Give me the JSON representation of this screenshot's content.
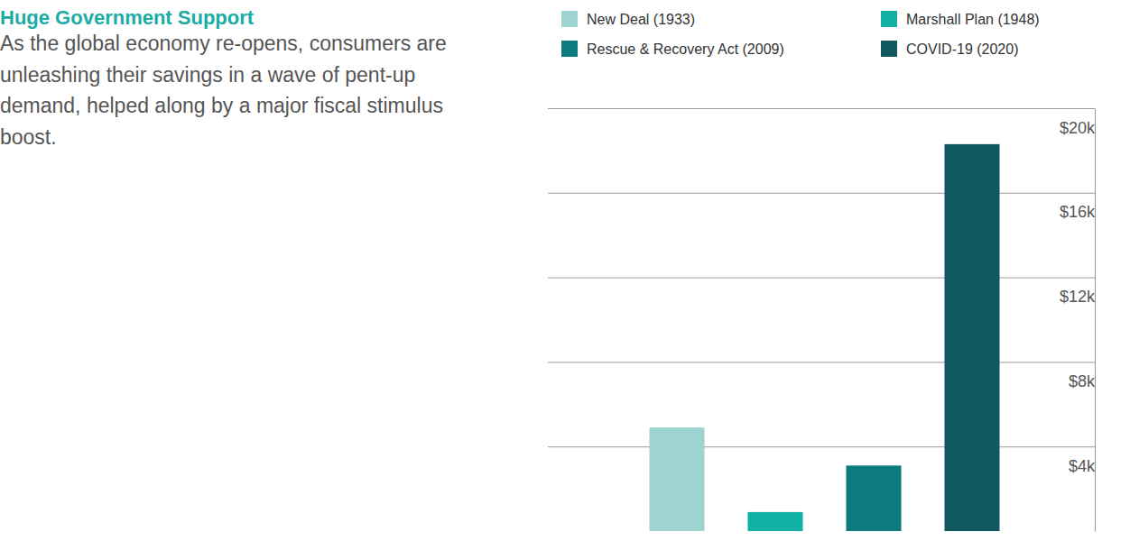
{
  "chart_data": {
    "type": "bar",
    "title": "Huge Government Support",
    "subtitle": "As the global economy re-opens, consumers are unleashing their savings in a wave of pent-up demand, helped along by a major fiscal stimulus boost.",
    "categories": [
      "New Deal (1933)",
      "Marshall Plan (1948)",
      "Rescue & Recovery Act (2009)",
      "COVID-19 (2020)"
    ],
    "values": [
      4900,
      900,
      3100,
      18300
    ],
    "colors": [
      "#9dd3d0",
      "#13b0a5",
      "#0b7b80",
      "#115961"
    ],
    "ylim": [
      0,
      20000
    ],
    "yticks": [
      {
        "value": 4000,
        "label": "$4k"
      },
      {
        "value": 8000,
        "label": "$8k"
      },
      {
        "value": 12000,
        "label": "$12k"
      },
      {
        "value": 16000,
        "label": "$16k"
      },
      {
        "value": 20000,
        "label": "$20k"
      }
    ],
    "grid": true,
    "legend": "top",
    "tick_labels": "y"
  }
}
